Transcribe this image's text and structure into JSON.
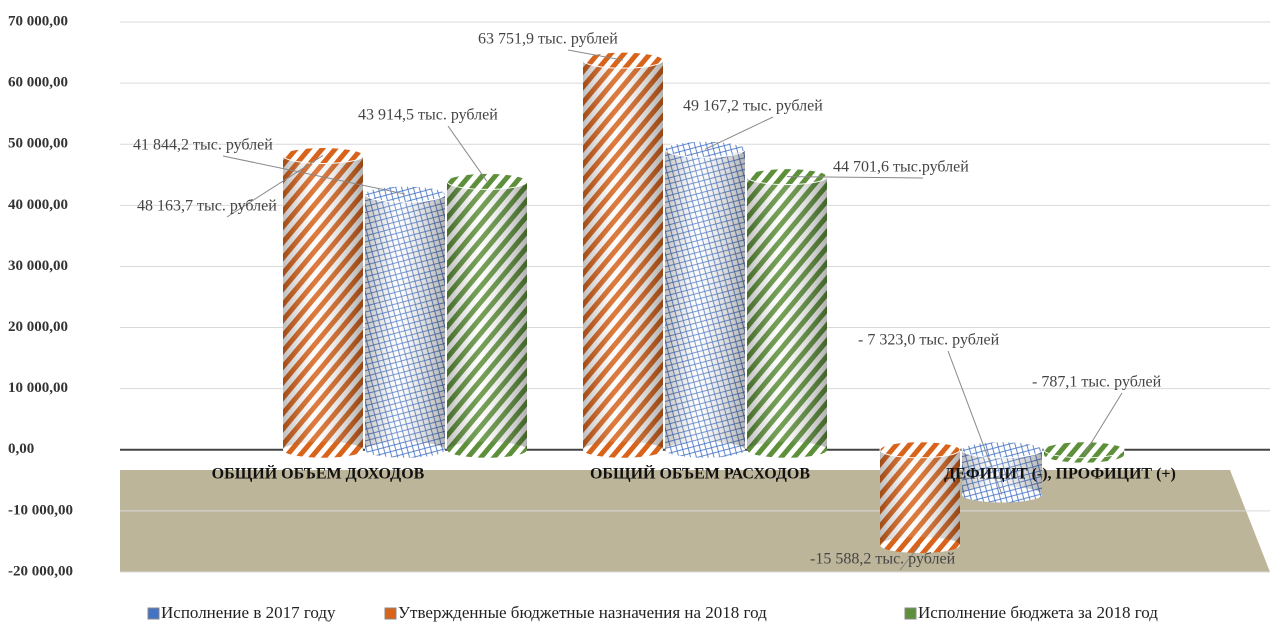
{
  "chart_data": {
    "type": "bar",
    "categories": [
      "ОБЩИЙ ОБЪЕМ ДОХОДОВ",
      "ОБЩИЙ ОБЪЕМ РАСХОДОВ",
      "ДЕФИЦИТ (-), ПРОФИЦИТ (+)"
    ],
    "series": [
      {
        "name": "Исполнение в 2017 году",
        "color": "#4472c4",
        "values": [
          41844.2,
          49167.2,
          -7323.0
        ],
        "value_labels": [
          "41 844,2 тыс. рублей",
          "49 167,2 тыс. рублей",
          "- 7 323,0 тыс. рублей"
        ]
      },
      {
        "name": "Утвержденные бюджетные назначения на 2018 год",
        "color": "#d8641c",
        "values": [
          48163.7,
          63751.9,
          -15588.2
        ],
        "value_labels": [
          "48 163,7 тыс. рублей",
          "63 751,9 тыс. рублей",
          "-15 588,2 тыс. рублей"
        ]
      },
      {
        "name": "Исполнение бюджета за 2018 год",
        "color": "#5e8f3a",
        "values": [
          43914.5,
          44701.6,
          -787.1
        ],
        "value_labels": [
          "43 914,5 тыс. рублей",
          "44 701,6 тыс.рублей",
          "- 787,1 тыс. рублей"
        ]
      }
    ],
    "ylim": [
      -20000,
      70000
    ],
    "yticks": [
      {
        "value": -20000,
        "label": "-20 000,00"
      },
      {
        "value": -10000,
        "label": "-10 000,00"
      },
      {
        "value": 0,
        "label": "0,00"
      },
      {
        "value": 10000,
        "label": "10 000,00"
      },
      {
        "value": 20000,
        "label": "20 000,00"
      },
      {
        "value": 30000,
        "label": "30 000,00"
      },
      {
        "value": 40000,
        "label": "40 000,00"
      },
      {
        "value": 50000,
        "label": "50 000,00"
      },
      {
        "value": 60000,
        "label": "60 000,00"
      },
      {
        "value": 70000,
        "label": "70 000,00"
      }
    ],
    "grid": true,
    "legend": "bottom"
  }
}
